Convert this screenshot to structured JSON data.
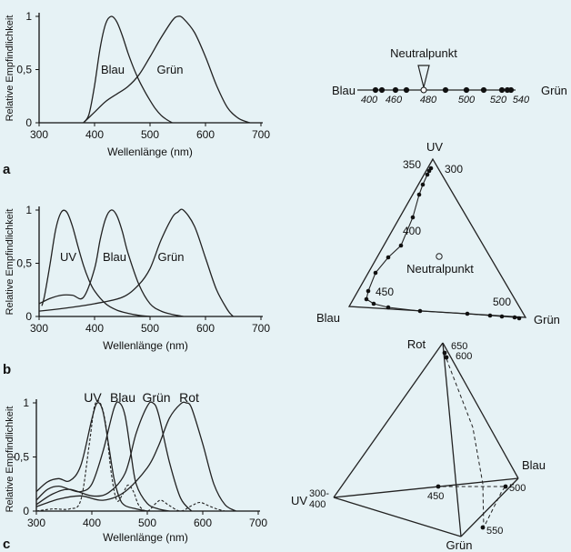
{
  "colors": {
    "background": "#e6f2f5",
    "ink": "#111111",
    "curve": "#222222"
  },
  "chart_data": [
    {
      "type": "line",
      "panel": "a",
      "ylabel": "Relative Empfindlichkeit",
      "xlabel": "Wellenlänge (nm)",
      "xlim": [
        300,
        700
      ],
      "ylim": [
        0,
        1
      ],
      "xticks": [
        "300",
        "400",
        "500",
        "600",
        "700"
      ],
      "yticks": [
        "0",
        "0,5",
        "1"
      ],
      "curve_labels": [
        "Blau",
        "Grün"
      ],
      "series": [
        {
          "name": "Blau",
          "x": [
            380,
            390,
            400,
            410,
            420,
            430,
            440,
            450,
            460,
            470,
            480,
            490,
            500,
            510,
            520,
            530,
            540
          ],
          "y": [
            0,
            0.08,
            0.35,
            0.7,
            0.93,
            1.0,
            0.95,
            0.82,
            0.66,
            0.52,
            0.4,
            0.3,
            0.21,
            0.13,
            0.07,
            0.03,
            0
          ]
        },
        {
          "name": "Grün",
          "x": [
            380,
            400,
            420,
            440,
            460,
            480,
            500,
            520,
            540,
            550,
            560,
            580,
            600,
            620,
            640,
            660,
            680
          ],
          "y": [
            0,
            0.1,
            0.2,
            0.27,
            0.34,
            0.45,
            0.62,
            0.8,
            0.96,
            1.0,
            0.98,
            0.85,
            0.62,
            0.35,
            0.14,
            0.04,
            0
          ]
        }
      ]
    },
    {
      "type": "line",
      "panel": "b",
      "ylabel": "Relative Empfindlichkeit",
      "xlabel": "Wellenlänge (nm)",
      "xlim": [
        300,
        700
      ],
      "ylim": [
        0,
        1
      ],
      "xticks": [
        "300",
        "400",
        "500",
        "600",
        "700"
      ],
      "yticks": [
        "0",
        "0,5",
        "1"
      ],
      "curve_labels": [
        "UV",
        "Blau",
        "Grün"
      ],
      "series": [
        {
          "name": "UV",
          "x": [
            305,
            310,
            320,
            330,
            340,
            350,
            360,
            370,
            380,
            390,
            400,
            420,
            440,
            460,
            480,
            500
          ],
          "y": [
            0.1,
            0.2,
            0.5,
            0.82,
            0.98,
            0.98,
            0.85,
            0.66,
            0.48,
            0.34,
            0.24,
            0.12,
            0.06,
            0.03,
            0.01,
            0
          ]
        },
        {
          "name": "Blau",
          "x": [
            300,
            320,
            340,
            360,
            380,
            400,
            410,
            420,
            430,
            440,
            450,
            460,
            480,
            500,
            520,
            540,
            560
          ],
          "y": [
            0.12,
            0.17,
            0.2,
            0.2,
            0.18,
            0.45,
            0.72,
            0.92,
            1.0,
            0.95,
            0.8,
            0.6,
            0.3,
            0.12,
            0.05,
            0.02,
            0
          ]
        },
        {
          "name": "Grün",
          "x": [
            300,
            350,
            400,
            450,
            480,
            500,
            520,
            540,
            550,
            560,
            580,
            600,
            620,
            640,
            650
          ],
          "y": [
            0.05,
            0.08,
            0.12,
            0.18,
            0.3,
            0.45,
            0.72,
            0.93,
            0.98,
            1.0,
            0.85,
            0.55,
            0.25,
            0.06,
            0
          ]
        }
      ]
    },
    {
      "type": "line",
      "panel": "c",
      "ylabel": "Relative Empfindlichkeit",
      "xlabel": "Wellenlänge (nm)",
      "xlim": [
        300,
        700
      ],
      "ylim": [
        0,
        1
      ],
      "xticks": [
        "300",
        "400",
        "500",
        "600",
        "700"
      ],
      "yticks": [
        "0",
        "0,5",
        "1"
      ],
      "curve_labels": [
        "UV",
        "Blau",
        "Grün",
        "Rot"
      ],
      "series": [
        {
          "name": "UV",
          "x": [
            300,
            320,
            340,
            360,
            380,
            400,
            410,
            420,
            430,
            440,
            450,
            460,
            480,
            500
          ],
          "y": [
            0.18,
            0.27,
            0.3,
            0.28,
            0.42,
            0.85,
            1.0,
            0.92,
            0.62,
            0.3,
            0.12,
            0.05,
            0.02,
            0
          ]
        },
        {
          "name": "Blau",
          "x": [
            300,
            320,
            340,
            360,
            380,
            400,
            420,
            440,
            450,
            460,
            470,
            480,
            500,
            520,
            540
          ],
          "y": [
            0.1,
            0.2,
            0.23,
            0.2,
            0.18,
            0.25,
            0.55,
            0.95,
            1.0,
            0.88,
            0.55,
            0.25,
            0.07,
            0.02,
            0
          ]
        },
        {
          "name": "Grün",
          "x": [
            300,
            330,
            360,
            400,
            430,
            460,
            480,
            500,
            510,
            520,
            540,
            560,
            580
          ],
          "y": [
            0.06,
            0.16,
            0.2,
            0.14,
            0.17,
            0.35,
            0.72,
            0.97,
            1.0,
            0.9,
            0.45,
            0.12,
            0
          ]
        },
        {
          "name": "Rot",
          "x": [
            300,
            340,
            380,
            420,
            460,
            500,
            520,
            540,
            560,
            570,
            580,
            600,
            620,
            640,
            660
          ],
          "y": [
            0.04,
            0.11,
            0.14,
            0.1,
            0.18,
            0.4,
            0.6,
            0.86,
            0.99,
            1.0,
            0.95,
            0.62,
            0.25,
            0.06,
            0
          ]
        },
        {
          "name": "",
          "dashed": true,
          "x": [
            300,
            330,
            360,
            380,
            395,
            405,
            415,
            425,
            435,
            445,
            455,
            465,
            475,
            485,
            500,
            515,
            525,
            540,
            560,
            580,
            595,
            610,
            625,
            640
          ],
          "y": [
            0,
            0.02,
            0.02,
            0.1,
            0.6,
            0.97,
            1.0,
            0.8,
            0.35,
            0.1,
            0.15,
            0.24,
            0.18,
            0.05,
            0,
            0.07,
            0.1,
            0.05,
            0,
            0.05,
            0.08,
            0.05,
            0.02,
            0
          ]
        }
      ]
    },
    {
      "type": "diagram",
      "panel": "a-color-line",
      "title": "Neutralpunkt",
      "left_label": "Blau",
      "right_label": "Grün",
      "tick_labels": [
        "400",
        "460",
        "480",
        "500",
        "520",
        "540"
      ],
      "points_nm": [
        400,
        420,
        440,
        460,
        480,
        490,
        500,
        520,
        530,
        540,
        550
      ]
    },
    {
      "type": "diagram",
      "panel": "b-triangle",
      "vertex_labels": [
        "UV",
        "Blau",
        "Grün"
      ],
      "neutral_label": "Neutralpunkt",
      "wavelength_labels": [
        "350",
        "300",
        "400",
        "450",
        "500"
      ]
    },
    {
      "type": "diagram",
      "panel": "c-tetrahedron",
      "vertex_labels": [
        "Rot",
        "Blau",
        "Grün"
      ],
      "uv_label": "UV",
      "uv_range": [
        "300-",
        "400"
      ],
      "wavelength_labels": [
        "650",
        "600",
        "450",
        "500",
        "550"
      ]
    }
  ]
}
